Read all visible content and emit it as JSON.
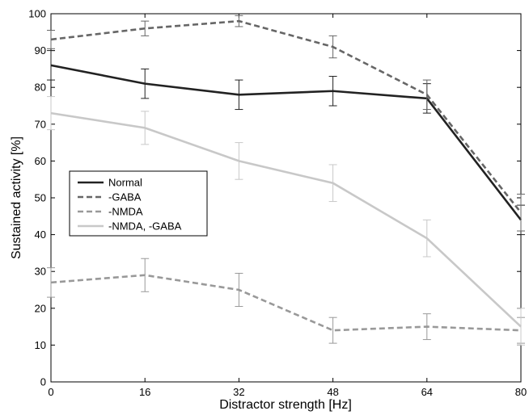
{
  "chart_data": {
    "type": "line",
    "title": "",
    "xlabel": "Distractor strength [Hz]",
    "ylabel": "Sustained activity [%]",
    "xlim": [
      0,
      80
    ],
    "ylim": [
      0,
      100
    ],
    "xticks": [
      0,
      16,
      32,
      48,
      64,
      80
    ],
    "yticks": [
      0,
      10,
      20,
      30,
      40,
      50,
      60,
      70,
      80,
      90,
      100
    ],
    "grid": false,
    "legend_position": "center-left",
    "x": [
      0,
      16,
      32,
      48,
      64,
      80
    ],
    "series": [
      {
        "name": "Normal",
        "values": [
          86,
          81,
          78,
          79,
          77,
          44
        ],
        "errors": [
          4,
          4,
          4,
          4,
          4,
          4
        ],
        "color": "#222222",
        "dash": "solid"
      },
      {
        "name": "-GABA",
        "values": [
          93,
          96,
          98,
          91,
          78,
          46
        ],
        "errors": [
          2.5,
          2,
          1.5,
          3,
          4,
          5
        ],
        "color": "#666666",
        "dash": "dashed"
      },
      {
        "name": "-NMDA",
        "values": [
          27,
          29,
          25,
          14,
          15,
          14
        ],
        "errors": [
          4,
          4.5,
          4.5,
          3.5,
          3.5,
          3.5
        ],
        "color": "#999999",
        "dash": "dashed"
      },
      {
        "name": "-NMDA, -GABA",
        "values": [
          73,
          69,
          60,
          54,
          39,
          15
        ],
        "errors": [
          4.5,
          4.5,
          5,
          5,
          5,
          5
        ],
        "color": "#c8c8c8",
        "dash": "solid"
      }
    ]
  }
}
